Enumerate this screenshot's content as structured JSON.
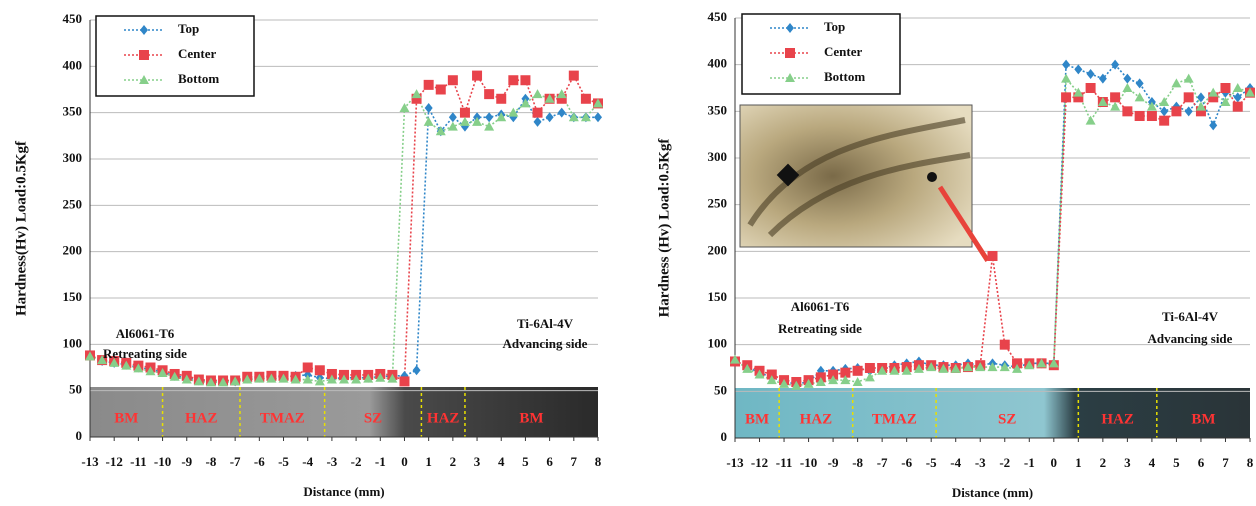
{
  "chart_data": [
    {
      "type": "line",
      "xlabel": "Distance (mm)",
      "ylabel": "Hardness(Hv) Load:0.5Kgf",
      "x": [
        -13,
        -12.5,
        -12,
        -11.5,
        -11,
        -10.5,
        -10,
        -9.5,
        -9,
        -8.5,
        -8,
        -7.5,
        -7,
        -6.5,
        -6,
        -5.5,
        -5,
        -4.5,
        -4,
        -3.5,
        -3,
        -2.5,
        -2,
        -1.5,
        -1,
        -0.5,
        0,
        0.5,
        1,
        1.5,
        2,
        2.5,
        3,
        3.5,
        4,
        4.5,
        5,
        5.5,
        6,
        6.5,
        7,
        7.5,
        8
      ],
      "series": [
        {
          "name": "Top",
          "color": "#2f86c8",
          "marker": "diamond",
          "values": [
            88,
            82,
            80,
            78,
            75,
            73,
            70,
            66,
            64,
            61,
            60,
            60,
            60,
            63,
            64,
            65,
            65,
            66,
            67,
            64,
            63,
            64,
            64,
            64,
            65,
            66,
            66,
            72,
            355,
            330,
            345,
            335,
            345,
            345,
            348,
            345,
            365,
            340,
            345,
            350,
            345,
            345,
            345
          ]
        },
        {
          "name": "Center",
          "color": "#e8434b",
          "marker": "square",
          "values": [
            88,
            83,
            82,
            80,
            77,
            75,
            72,
            68,
            66,
            62,
            61,
            61,
            61,
            65,
            65,
            66,
            66,
            65,
            75,
            72,
            68,
            67,
            67,
            67,
            68,
            67,
            60,
            365,
            380,
            375,
            385,
            350,
            390,
            370,
            365,
            385,
            385,
            350,
            365,
            365,
            390,
            365,
            360
          ]
        },
        {
          "name": "Bottom",
          "color": "#86cf8a",
          "marker": "triangle",
          "values": [
            87,
            83,
            80,
            77,
            74,
            71,
            69,
            65,
            62,
            60,
            59,
            59,
            60,
            62,
            63,
            63,
            63,
            62,
            62,
            60,
            62,
            62,
            62,
            63,
            64,
            63,
            355,
            370,
            340,
            330,
            335,
            340,
            340,
            335,
            345,
            350,
            360,
            370,
            365,
            370,
            345,
            345,
            360
          ]
        }
      ],
      "xlim": [
        -13,
        8
      ],
      "xticks": [
        -13,
        -12,
        -11,
        -10,
        -9,
        -8,
        -7,
        -6,
        -5,
        -4,
        -3,
        -2,
        -1,
        0,
        1,
        2,
        3,
        4,
        5,
        6,
        7,
        8
      ],
      "ylim": [
        0,
        450
      ],
      "yticks": [
        0,
        50,
        100,
        150,
        200,
        250,
        300,
        350,
        400,
        450
      ],
      "grid": true,
      "legend": "upper left",
      "annotations": [
        "Al6061-T6",
        "Retreating side",
        "Ti-6Al-4V",
        "Advancing side"
      ],
      "zones": [
        "BM",
        "HAZ",
        "TMAZ",
        "SZ",
        "HAZ",
        "BM"
      ]
    },
    {
      "type": "line",
      "xlabel": "Distance (mm)",
      "ylabel": "Hardness (Hv) Load:0.5Kgf",
      "x": [
        -13,
        -12.5,
        -12,
        -11.5,
        -11,
        -10.5,
        -10,
        -9.5,
        -9,
        -8.5,
        -8,
        -7.5,
        -7,
        -6.5,
        -6,
        -5.5,
        -5,
        -4.5,
        -4,
        -3.5,
        -3,
        -2.5,
        -2,
        -1.5,
        -1,
        -0.5,
        0,
        0.5,
        1,
        1.5,
        2,
        2.5,
        3,
        3.5,
        4,
        4.5,
        5,
        5.5,
        6,
        6.5,
        7,
        7.5,
        8
      ],
      "series": [
        {
          "name": "Top",
          "color": "#2f86c8",
          "marker": "diamond",
          "values": [
            83,
            76,
            70,
            65,
            60,
            58,
            60,
            72,
            72,
            74,
            75,
            72,
            74,
            78,
            80,
            82,
            78,
            78,
            78,
            80,
            78,
            80,
            78,
            76,
            80,
            80,
            80,
            400,
            395,
            390,
            385,
            400,
            385,
            380,
            360,
            350,
            355,
            350,
            365,
            335,
            370,
            365,
            375
          ]
        },
        {
          "name": "Center",
          "color": "#e8434b",
          "marker": "square",
          "values": [
            82,
            78,
            72,
            68,
            62,
            60,
            62,
            65,
            68,
            70,
            72,
            75,
            75,
            75,
            76,
            78,
            78,
            76,
            75,
            76,
            78,
            195,
            100,
            80,
            80,
            80,
            78,
            365,
            365,
            375,
            360,
            365,
            350,
            345,
            345,
            340,
            350,
            365,
            350,
            365,
            375,
            355,
            370
          ]
        },
        {
          "name": "Bottom",
          "color": "#86cf8a",
          "marker": "triangle",
          "values": [
            84,
            74,
            68,
            62,
            58,
            56,
            58,
            60,
            62,
            62,
            60,
            65,
            72,
            72,
            72,
            74,
            76,
            74,
            74,
            76,
            76,
            76,
            76,
            74,
            78,
            80,
            80,
            385,
            370,
            340,
            360,
            355,
            375,
            365,
            355,
            360,
            380,
            385,
            355,
            370,
            360,
            375,
            370
          ]
        }
      ],
      "xlim": [
        -13,
        8
      ],
      "xticks": [
        -13,
        -12,
        -11,
        -10,
        -9,
        -8,
        -7,
        -6,
        -5,
        -4,
        -3,
        -2,
        -1,
        0,
        1,
        2,
        3,
        4,
        5,
        6,
        7,
        8
      ],
      "ylim": [
        0,
        450
      ],
      "yticks": [
        0,
        50,
        100,
        150,
        200,
        250,
        300,
        350,
        400,
        450
      ],
      "grid": true,
      "legend": "upper left",
      "annotations": [
        "Al6061-T6",
        "Retreating side",
        "Ti-6Al-4V",
        "Advancing side"
      ],
      "zones": [
        "BM",
        "HAZ",
        "TMAZ",
        "SZ",
        "HAZ",
        "BM"
      ]
    }
  ]
}
